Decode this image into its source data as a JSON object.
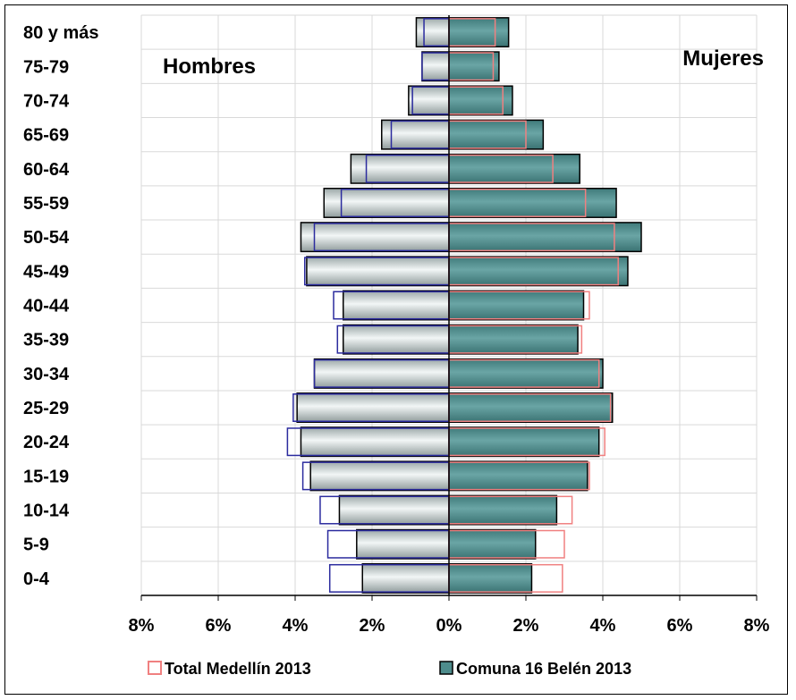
{
  "chart_data": {
    "type": "bar",
    "subtype": "population-pyramid",
    "categories": [
      "0-4",
      "5-9",
      "10-14",
      "15-19",
      "20-24",
      "25-29",
      "30-34",
      "35-39",
      "40-44",
      "45-49",
      "50-54",
      "55-59",
      "60-64",
      "65-69",
      "70-74",
      "75-79",
      "80 y más"
    ],
    "side_labels": {
      "left": "Hombres",
      "right": "Mujeres"
    },
    "x_ticks": [
      "8%",
      "6%",
      "4%",
      "2%",
      "0%",
      "2%",
      "4%",
      "6%",
      "8%"
    ],
    "xlim": [
      -8,
      8
    ],
    "grid": "vertical",
    "legend_position": "bottom",
    "series": [
      {
        "name": "Total Medellín 2013",
        "style": "outline",
        "male_color": "#2B2B9E",
        "female_color": "#F08080",
        "male": [
          3.1,
          3.15,
          3.35,
          3.8,
          4.2,
          4.05,
          3.5,
          2.9,
          3.0,
          3.75,
          3.5,
          2.8,
          2.15,
          1.5,
          0.95,
          0.7,
          0.65
        ],
        "female": [
          2.95,
          3.0,
          3.2,
          3.65,
          4.05,
          4.2,
          3.9,
          3.45,
          3.65,
          4.4,
          4.3,
          3.55,
          2.7,
          2.0,
          1.4,
          1.15,
          1.2
        ]
      },
      {
        "name": "Comuna 16 Belén 2013",
        "style": "filled",
        "male_color": "#C0CCCC",
        "female_color": "#4E8C8C",
        "male": [
          2.25,
          2.4,
          2.85,
          3.6,
          3.85,
          3.95,
          3.5,
          2.75,
          2.75,
          3.7,
          3.85,
          3.25,
          2.55,
          1.75,
          1.05,
          0.7,
          0.85
        ],
        "female": [
          2.15,
          2.25,
          2.8,
          3.6,
          3.9,
          4.25,
          4.0,
          3.35,
          3.5,
          4.65,
          5.0,
          4.35,
          3.4,
          2.45,
          1.65,
          1.3,
          1.55
        ]
      }
    ]
  }
}
